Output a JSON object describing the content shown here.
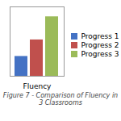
{
  "chart_data": {
    "type": "bar",
    "title": "Figure 7 - Comparison of Fluency in 3 Classrooms",
    "categories": [
      "Fluency"
    ],
    "series": [
      {
        "name": "Progress 1",
        "color": "#4472C4",
        "values": [
          1.2
        ]
      },
      {
        "name": "Progress 2",
        "color": "#C0504D",
        "values": [
          2.2
        ]
      },
      {
        "name": "Progress 3",
        "color": "#9BBB59",
        "values": [
          3.6
        ]
      }
    ],
    "ylim": [
      0,
      4.2
    ],
    "yticks": [],
    "grid": false,
    "legend": "right",
    "tick_labels": "x"
  }
}
